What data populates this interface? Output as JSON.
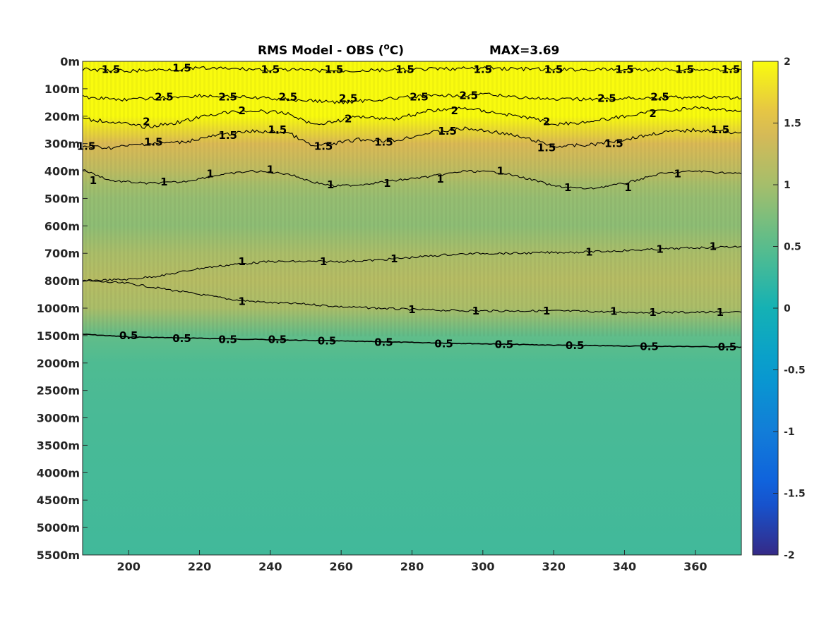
{
  "chart_data": {
    "type": "heatmap",
    "title": "RMS Model - OBS (°C)",
    "title_base": "RMS Model - OBS (",
    "title_sup": "o",
    "title_end": "C)",
    "max_annotation": "MAX=3.69",
    "xlim": [
      187,
      373
    ],
    "x_ticks": [
      200,
      220,
      240,
      260,
      280,
      300,
      320,
      340,
      360
    ],
    "x_tick_labels": [
      "200",
      "220",
      "240",
      "260",
      "280",
      "300",
      "320",
      "340",
      "360"
    ],
    "y_tick_labels": [
      "0m",
      "100m",
      "200m",
      "300m",
      "400m",
      "500m",
      "600m",
      "700m",
      "800m",
      "1000m",
      "1500m",
      "2000m",
      "2500m",
      "3000m",
      "3500m",
      "4000m",
      "4500m",
      "5000m",
      "5500m"
    ],
    "clim": [
      -2,
      2
    ],
    "colorbar_ticks": [
      2,
      1.5,
      1,
      0.5,
      0,
      -0.5,
      -1,
      -1.5,
      -2
    ],
    "colorbar_tick_labels": [
      "2",
      "1.5",
      "1",
      "0.5",
      "0",
      "-0.5",
      "-1",
      "-1.5",
      "-2"
    ],
    "colormap": "parula",
    "depth_profile": [
      {
        "level": 0,
        "value": 2.3
      },
      {
        "level": 1,
        "value": 2.5
      },
      {
        "level": 2,
        "value": 2.0
      },
      {
        "level": 3,
        "value": 1.45
      },
      {
        "level": 4,
        "value": 1.2
      },
      {
        "level": 4.5,
        "value": 1.0
      },
      {
        "level": 5,
        "value": 0.9
      },
      {
        "level": 6,
        "value": 0.85
      },
      {
        "level": 7,
        "value": 1.05
      },
      {
        "level": 8,
        "value": 1.15
      },
      {
        "level": 9,
        "value": 1.05
      },
      {
        "level": 10,
        "value": 0.55
      },
      {
        "level": 11,
        "value": 0.42
      },
      {
        "level": 13,
        "value": 0.38
      },
      {
        "level": 18,
        "value": 0.32
      }
    ],
    "contours": [
      {
        "level": "0.5",
        "x": [
          187,
          200,
          220,
          240,
          260,
          280,
          300,
          320,
          340,
          360,
          373
        ],
        "depth_level": [
          9.95,
          10.05,
          10.1,
          10.15,
          10.2,
          10.25,
          10.3,
          10.35,
          10.38,
          10.4,
          10.42
        ]
      },
      {
        "level": "1",
        "x": [
          187,
          200,
          210,
          220,
          230,
          240,
          250,
          260,
          270,
          280,
          290,
          300,
          310,
          320,
          330,
          340,
          350,
          360,
          373
        ],
        "depth_level": [
          8.0,
          8.1,
          8.3,
          8.5,
          8.7,
          8.8,
          8.85,
          8.95,
          9.0,
          9.05,
          9.08,
          9.1,
          9.1,
          9.1,
          9.12,
          9.15,
          9.15,
          9.15,
          9.15
        ]
      },
      {
        "level": "1",
        "x": [
          187,
          200,
          210,
          220,
          230,
          240,
          250,
          260,
          270,
          280,
          290,
          300,
          310,
          320,
          330,
          340,
          350,
          360,
          373
        ],
        "depth_level": [
          8.0,
          7.95,
          7.8,
          7.55,
          7.4,
          7.3,
          7.3,
          7.3,
          7.25,
          7.15,
          7.05,
          7.0,
          7.0,
          6.97,
          6.95,
          6.9,
          6.85,
          6.8,
          6.75
        ]
      },
      {
        "level": "1",
        "x": [
          187,
          195,
          205,
          215,
          225,
          235,
          245,
          252,
          258,
          265,
          275,
          285,
          295,
          305,
          315,
          320,
          330,
          340,
          350,
          360,
          373
        ],
        "depth_level": [
          3.95,
          4.35,
          4.45,
          4.4,
          4.15,
          4.0,
          4.1,
          4.4,
          4.55,
          4.5,
          4.35,
          4.2,
          4.0,
          4.05,
          4.35,
          4.55,
          4.65,
          4.45,
          4.1,
          4.0,
          4.1
        ]
      },
      {
        "level": "1.5",
        "x": [
          187,
          195,
          205,
          215,
          225,
          235,
          245,
          252,
          258,
          265,
          275,
          285,
          295,
          305,
          315,
          320,
          330,
          340,
          350,
          360,
          373
        ],
        "depth_level": [
          3.1,
          3.15,
          3.0,
          2.95,
          2.7,
          2.55,
          2.6,
          3.1,
          3.0,
          2.85,
          2.9,
          2.6,
          2.45,
          2.6,
          2.9,
          3.1,
          3.05,
          2.85,
          2.6,
          2.5,
          2.6
        ]
      },
      {
        "level": "1.5",
        "x": [
          187,
          200,
          220,
          240,
          260,
          280,
          300,
          320,
          340,
          360,
          373
        ],
        "depth_level": [
          0.3,
          0.35,
          0.25,
          0.3,
          0.35,
          0.3,
          0.25,
          0.3,
          0.3,
          0.3,
          0.3
        ]
      },
      {
        "level": "2",
        "x": [
          187,
          195,
          205,
          215,
          225,
          235,
          245,
          252,
          258,
          265,
          275,
          285,
          295,
          305,
          315,
          320,
          330,
          340,
          350,
          360,
          373
        ],
        "depth_level": [
          2.1,
          2.2,
          2.4,
          2.2,
          1.9,
          1.8,
          1.9,
          2.3,
          2.2,
          2.0,
          2.1,
          1.8,
          1.7,
          1.9,
          2.1,
          2.3,
          2.2,
          2.0,
          1.8,
          1.7,
          1.8
        ]
      },
      {
        "level": "2.5",
        "x": [
          187,
          200,
          220,
          240,
          260,
          280,
          300,
          320,
          340,
          360,
          373
        ],
        "depth_level": [
          1.3,
          1.4,
          1.25,
          1.35,
          1.5,
          1.3,
          1.2,
          1.4,
          1.35,
          1.3,
          1.35
        ]
      }
    ],
    "contour_labels": [
      {
        "text": "1.5",
        "x": 195,
        "depth_level": 0.3
      },
      {
        "text": "1.5",
        "x": 215,
        "depth_level": 0.25
      },
      {
        "text": "1.5",
        "x": 240,
        "depth_level": 0.3
      },
      {
        "text": "1.5",
        "x": 258,
        "depth_level": 0.3
      },
      {
        "text": "1.5",
        "x": 278,
        "depth_level": 0.3
      },
      {
        "text": "1.5",
        "x": 300,
        "depth_level": 0.3
      },
      {
        "text": "1.5",
        "x": 320,
        "depth_level": 0.3
      },
      {
        "text": "1.5",
        "x": 340,
        "depth_level": 0.3
      },
      {
        "text": "1.5",
        "x": 357,
        "depth_level": 0.3
      },
      {
        "text": "1.5",
        "x": 370,
        "depth_level": 0.3
      },
      {
        "text": "2.5",
        "x": 210,
        "depth_level": 1.3
      },
      {
        "text": "2.5",
        "x": 228,
        "depth_level": 1.3
      },
      {
        "text": "2.5",
        "x": 245,
        "depth_level": 1.3
      },
      {
        "text": "2.5",
        "x": 262,
        "depth_level": 1.35
      },
      {
        "text": "2.5",
        "x": 282,
        "depth_level": 1.3
      },
      {
        "text": "2.5",
        "x": 296,
        "depth_level": 1.25
      },
      {
        "text": "2.5",
        "x": 335,
        "depth_level": 1.35
      },
      {
        "text": "2.5",
        "x": 350,
        "depth_level": 1.3
      },
      {
        "text": "2",
        "x": 205,
        "depth_level": 2.2
      },
      {
        "text": "2",
        "x": 232,
        "depth_level": 1.8
      },
      {
        "text": "2",
        "x": 262,
        "depth_level": 2.1
      },
      {
        "text": "2",
        "x": 292,
        "depth_level": 1.8
      },
      {
        "text": "2",
        "x": 318,
        "depth_level": 2.2
      },
      {
        "text": "2",
        "x": 348,
        "depth_level": 1.9
      },
      {
        "text": "1.5",
        "x": 188,
        "depth_level": 3.1
      },
      {
        "text": "1.5",
        "x": 207,
        "depth_level": 2.95
      },
      {
        "text": "1.5",
        "x": 228,
        "depth_level": 2.7
      },
      {
        "text": "1.5",
        "x": 242,
        "depth_level": 2.5
      },
      {
        "text": "1.5",
        "x": 255,
        "depth_level": 3.1
      },
      {
        "text": "1.5",
        "x": 272,
        "depth_level": 2.95
      },
      {
        "text": "1.5",
        "x": 290,
        "depth_level": 2.55
      },
      {
        "text": "1.5",
        "x": 318,
        "depth_level": 3.15
      },
      {
        "text": "1.5",
        "x": 337,
        "depth_level": 3.0
      },
      {
        "text": "1.5",
        "x": 367,
        "depth_level": 2.5
      },
      {
        "text": "1",
        "x": 190,
        "depth_level": 4.35
      },
      {
        "text": "1",
        "x": 210,
        "depth_level": 4.4
      },
      {
        "text": "1",
        "x": 223,
        "depth_level": 4.1
      },
      {
        "text": "1",
        "x": 240,
        "depth_level": 3.95
      },
      {
        "text": "1",
        "x": 257,
        "depth_level": 4.5
      },
      {
        "text": "1",
        "x": 273,
        "depth_level": 4.45
      },
      {
        "text": "1",
        "x": 288,
        "depth_level": 4.3
      },
      {
        "text": "1",
        "x": 305,
        "depth_level": 4.0
      },
      {
        "text": "1",
        "x": 324,
        "depth_level": 4.6
      },
      {
        "text": "1",
        "x": 341,
        "depth_level": 4.6
      },
      {
        "text": "1",
        "x": 355,
        "depth_level": 4.1
      },
      {
        "text": "1",
        "x": 232,
        "depth_level": 7.3
      },
      {
        "text": "1",
        "x": 255,
        "depth_level": 7.3
      },
      {
        "text": "1",
        "x": 275,
        "depth_level": 7.2
      },
      {
        "text": "1",
        "x": 330,
        "depth_level": 6.95
      },
      {
        "text": "1",
        "x": 350,
        "depth_level": 6.85
      },
      {
        "text": "1",
        "x": 365,
        "depth_level": 6.75
      },
      {
        "text": "1",
        "x": 232,
        "depth_level": 8.75
      },
      {
        "text": "1",
        "x": 280,
        "depth_level": 9.05
      },
      {
        "text": "1",
        "x": 298,
        "depth_level": 9.1
      },
      {
        "text": "1",
        "x": 318,
        "depth_level": 9.1
      },
      {
        "text": "1",
        "x": 337,
        "depth_level": 9.12
      },
      {
        "text": "1",
        "x": 348,
        "depth_level": 9.15
      },
      {
        "text": "1",
        "x": 367,
        "depth_level": 9.15
      },
      {
        "text": "0.5",
        "x": 200,
        "depth_level": 10.0
      },
      {
        "text": "0.5",
        "x": 215,
        "depth_level": 10.1
      },
      {
        "text": "0.5",
        "x": 228,
        "depth_level": 10.15
      },
      {
        "text": "0.5",
        "x": 242,
        "depth_level": 10.15
      },
      {
        "text": "0.5",
        "x": 256,
        "depth_level": 10.2
      },
      {
        "text": "0.5",
        "x": 272,
        "depth_level": 10.25
      },
      {
        "text": "0.5",
        "x": 289,
        "depth_level": 10.3
      },
      {
        "text": "0.5",
        "x": 306,
        "depth_level": 10.32
      },
      {
        "text": "0.5",
        "x": 326,
        "depth_level": 10.36
      },
      {
        "text": "0.5",
        "x": 347,
        "depth_level": 10.4
      },
      {
        "text": "0.5",
        "x": 369,
        "depth_level": 10.42
      }
    ]
  }
}
